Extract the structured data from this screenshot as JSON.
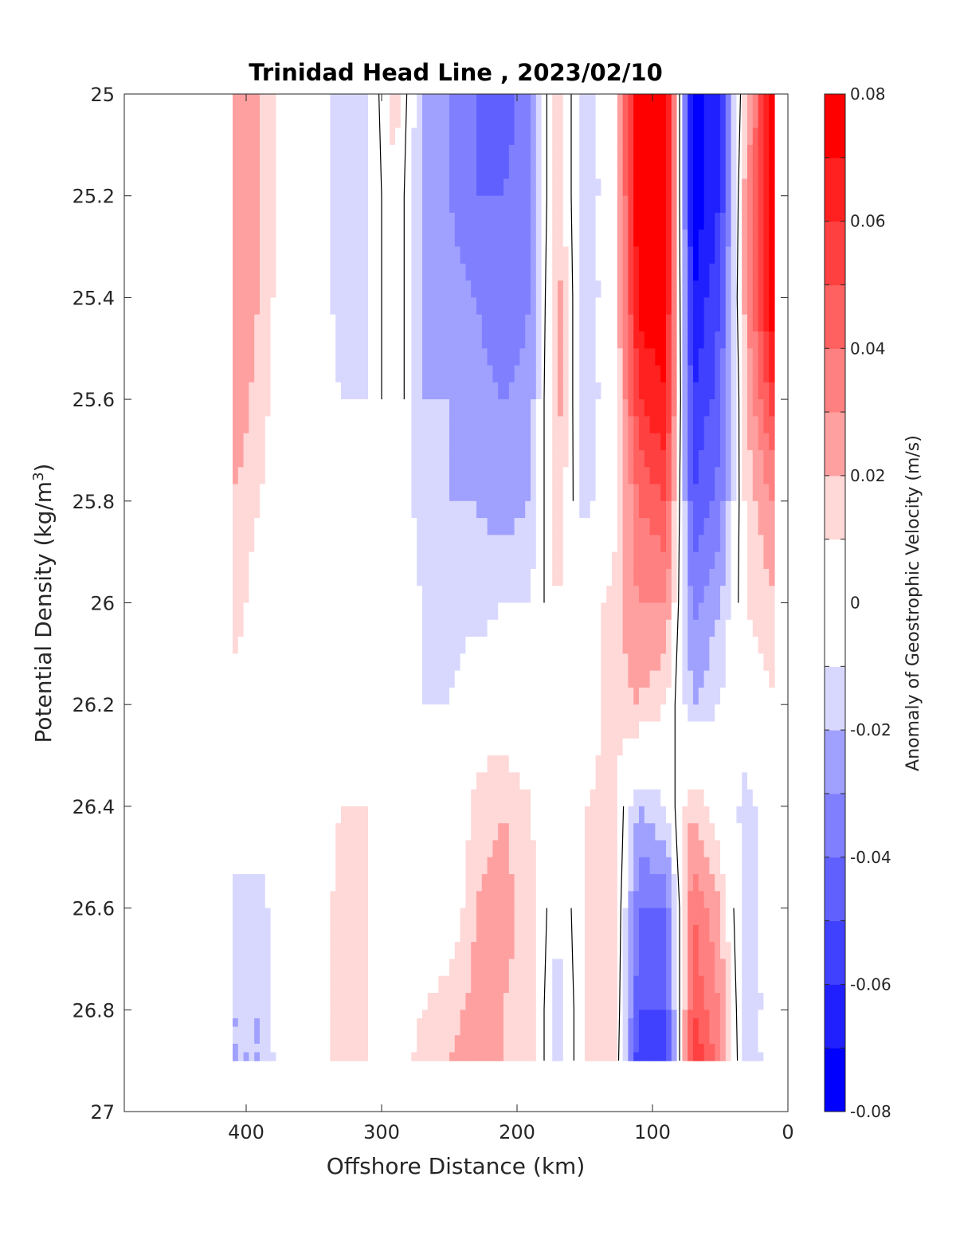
{
  "chart_data": {
    "type": "heatmap",
    "title": "Trinidad Head Line , 2023/02/10",
    "xlabel": "Offshore Distance (km)",
    "ylabel": "Potential Density (kg/m",
    "ylabel_sup": "3",
    "ylabel_close": ")",
    "xlim": [
      490,
      0
    ],
    "ylim": [
      25,
      27
    ],
    "y_reversed": true,
    "x_reversed": true,
    "xticks": [
      400,
      300,
      200,
      100,
      0
    ],
    "xtick_labels": [
      "400",
      "300",
      "200",
      "100",
      "0"
    ],
    "yticks": [
      25,
      25.2,
      25.4,
      25.6,
      25.8,
      26,
      26.2,
      26.4,
      26.6,
      26.8,
      27
    ],
    "ytick_labels": [
      "25",
      "25.2",
      "25.4",
      "25.6",
      "25.8",
      "26",
      "26.2",
      "26.4",
      "26.6",
      "26.8",
      "27"
    ],
    "colorbar": {
      "label": "Anomaly of Geostrophic Velocity (m/s)",
      "range": [
        -0.08,
        0.08
      ],
      "ticks": [
        -0.08,
        -0.06,
        -0.04,
        -0.02,
        0,
        0.02,
        0.04,
        0.06,
        0.08
      ],
      "tick_labels": [
        "-0.08",
        "-0.06",
        "-0.04",
        "-0.02",
        "0",
        "0.02",
        "0.04",
        "0.06",
        "0.08"
      ],
      "levels": [
        -0.08,
        -0.07,
        -0.06,
        -0.05,
        -0.04,
        -0.03,
        -0.02,
        -0.01,
        0.01,
        0.02,
        0.03,
        0.04,
        0.05,
        0.06,
        0.07,
        0.08
      ],
      "colors": [
        "#0000ff",
        "#2020ff",
        "#4040ff",
        "#6060ff",
        "#8080ff",
        "#a0a0ff",
        "#d8d8ff",
        "#ffffff",
        "#ffd8d8",
        "#ffa0a0",
        "#ff8080",
        "#ff6060",
        "#ff4040",
        "#ff2020",
        "#ff0000"
      ]
    },
    "data_extent": {
      "x": [
        410,
        10
      ],
      "y": [
        25,
        26.9
      ]
    },
    "stations_x": [
      410,
      390,
      370,
      350,
      330,
      310,
      290,
      270,
      250,
      230,
      210,
      190,
      170,
      150,
      130,
      110,
      90,
      70,
      50,
      30,
      10
    ],
    "density_levels": [
      25.0,
      25.2,
      25.4,
      25.6,
      25.8,
      26.0,
      26.2,
      26.4,
      26.6,
      26.8,
      26.9
    ],
    "velocity_grid": [
      [
        0.03,
        0.03,
        0.03,
        0.03,
        0.02,
        0.02,
        0.0,
        -0.01,
        -0.01,
        -0.02,
        -0.02
      ],
      [
        0.02,
        0.02,
        0.02,
        0.015,
        0.01,
        0.0,
        0.0,
        0.0,
        -0.015,
        -0.02,
        -0.02
      ],
      [
        0.0,
        0.0,
        0.0,
        0.0,
        0.0,
        0.0,
        0.0,
        0.0,
        0.0,
        0.0,
        0.0
      ],
      [
        0.0,
        0.0,
        0.0,
        0.0,
        0.01,
        0.01,
        0.0,
        0.0,
        0.0,
        0.0,
        0.0
      ],
      [
        -0.02,
        -0.015,
        -0.015,
        -0.01,
        -0.01,
        0.0,
        0.0,
        0.01,
        0.015,
        0.015,
        0.015
      ],
      [
        -0.01,
        -0.01,
        -0.01,
        -0.01,
        0.0,
        0.0,
        0.01,
        0.01,
        0.01,
        0.01,
        0.01
      ],
      [
        0.015,
        0.01,
        0.01,
        0.01,
        0.0,
        0.0,
        0.0,
        0.0,
        0.0,
        0.0,
        0.0
      ],
      [
        -0.02,
        -0.02,
        -0.02,
        -0.02,
        -0.015,
        -0.01,
        -0.01,
        0.0,
        0.0,
        0.01,
        0.015
      ],
      [
        -0.03,
        -0.03,
        -0.025,
        -0.02,
        -0.02,
        -0.015,
        -0.01,
        -0.01,
        0.0,
        0.015,
        0.02
      ],
      [
        -0.04,
        -0.04,
        -0.03,
        -0.025,
        -0.02,
        -0.015,
        0.0,
        0.015,
        0.02,
        0.025,
        0.025
      ],
      [
        -0.05,
        -0.04,
        -0.04,
        -0.03,
        -0.025,
        -0.01,
        0.0,
        0.02,
        0.025,
        0.02,
        0.02
      ],
      [
        -0.03,
        -0.03,
        -0.03,
        -0.025,
        -0.02,
        -0.01,
        0.0,
        0.01,
        0.015,
        0.015,
        0.015
      ],
      [
        0.02,
        0.02,
        0.025,
        0.025,
        0.02,
        0.01,
        0.0,
        0.0,
        -0.01,
        -0.015,
        -0.015
      ],
      [
        -0.02,
        -0.02,
        -0.02,
        -0.02,
        -0.015,
        0.0,
        0.0,
        0.01,
        0.01,
        0.01,
        0.01
      ],
      [
        0.0,
        0.0,
        0.0,
        0.0,
        0.0,
        0.015,
        0.015,
        0.015,
        0.02,
        0.02,
        0.02
      ],
      [
        0.08,
        0.08,
        0.075,
        0.06,
        0.04,
        0.03,
        0.02,
        -0.02,
        -0.04,
        -0.05,
        -0.06
      ],
      [
        0.08,
        0.08,
        0.075,
        0.07,
        0.05,
        0.03,
        0.01,
        -0.01,
        -0.04,
        -0.05,
        -0.06
      ],
      [
        -0.08,
        -0.08,
        -0.07,
        -0.06,
        -0.05,
        -0.035,
        -0.02,
        0.02,
        0.04,
        0.05,
        0.06
      ],
      [
        -0.06,
        -0.06,
        -0.05,
        -0.045,
        -0.035,
        -0.02,
        -0.01,
        0.0,
        0.02,
        0.03,
        0.035
      ],
      [
        0.02,
        0.03,
        0.03,
        0.02,
        0.015,
        0.01,
        0.0,
        -0.015,
        -0.02,
        -0.02,
        -0.02
      ],
      [
        0.08,
        0.08,
        0.08,
        0.06,
        0.03,
        0.02,
        0.01,
        0.0,
        0.0,
        0.0,
        0.0
      ]
    ]
  }
}
